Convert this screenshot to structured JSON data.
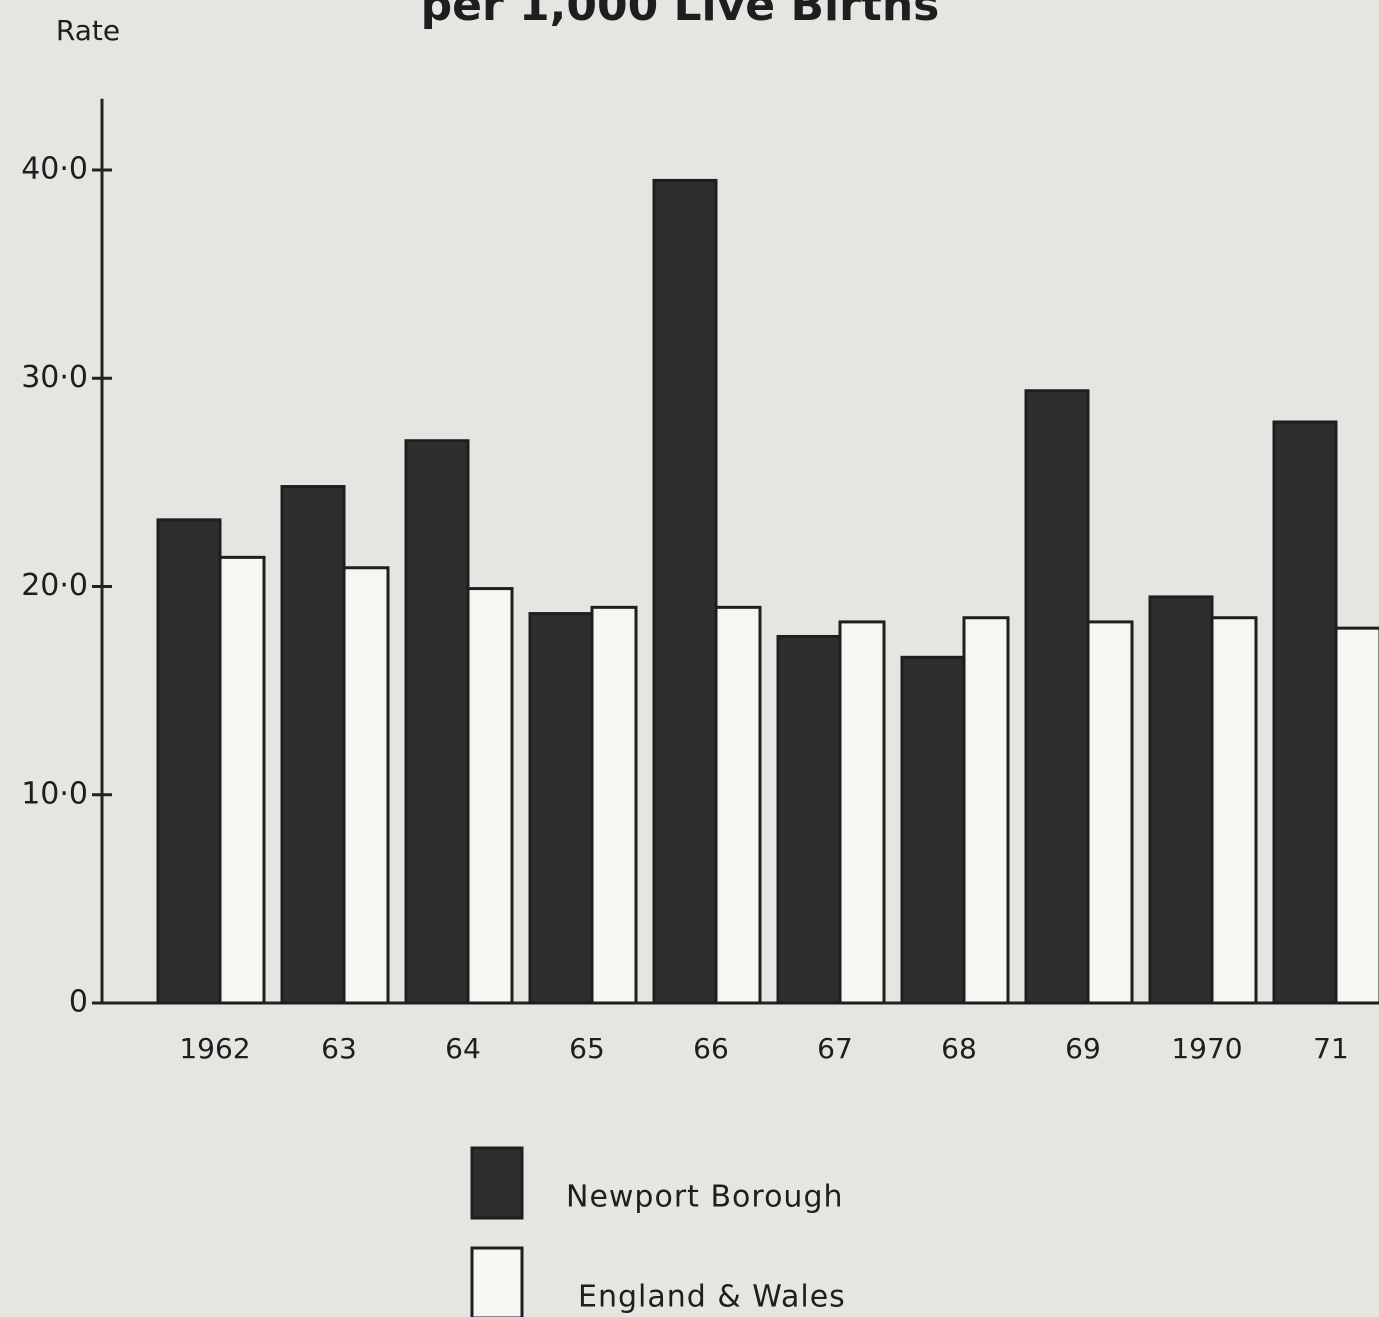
{
  "chart_data": {
    "type": "bar",
    "title": "per 1,000 Live Births",
    "y_label": "Rate",
    "categories": [
      "1962",
      "63",
      "64",
      "65",
      "66",
      "67",
      "68",
      "69",
      "1970",
      "71"
    ],
    "series": [
      {
        "name": "Newport Borough",
        "color": "#2e2e2e",
        "values": [
          23.2,
          24.8,
          27.0,
          18.7,
          39.5,
          17.6,
          16.6,
          29.4,
          19.5,
          27.9
        ]
      },
      {
        "name": "England & Wales",
        "color": "#f6f6f3",
        "values": [
          21.4,
          20.9,
          19.9,
          19.0,
          19.0,
          18.3,
          18.5,
          18.3,
          18.5,
          18.0
        ]
      }
    ],
    "ylim": [
      0,
      41.5
    ],
    "yticks": [
      0,
      {
        "value": 10,
        "label": "10·0"
      },
      {
        "value": 20,
        "label": "20·0"
      },
      {
        "value": 30,
        "label": "30·0"
      },
      {
        "value": 40,
        "label": "40·0"
      }
    ]
  }
}
